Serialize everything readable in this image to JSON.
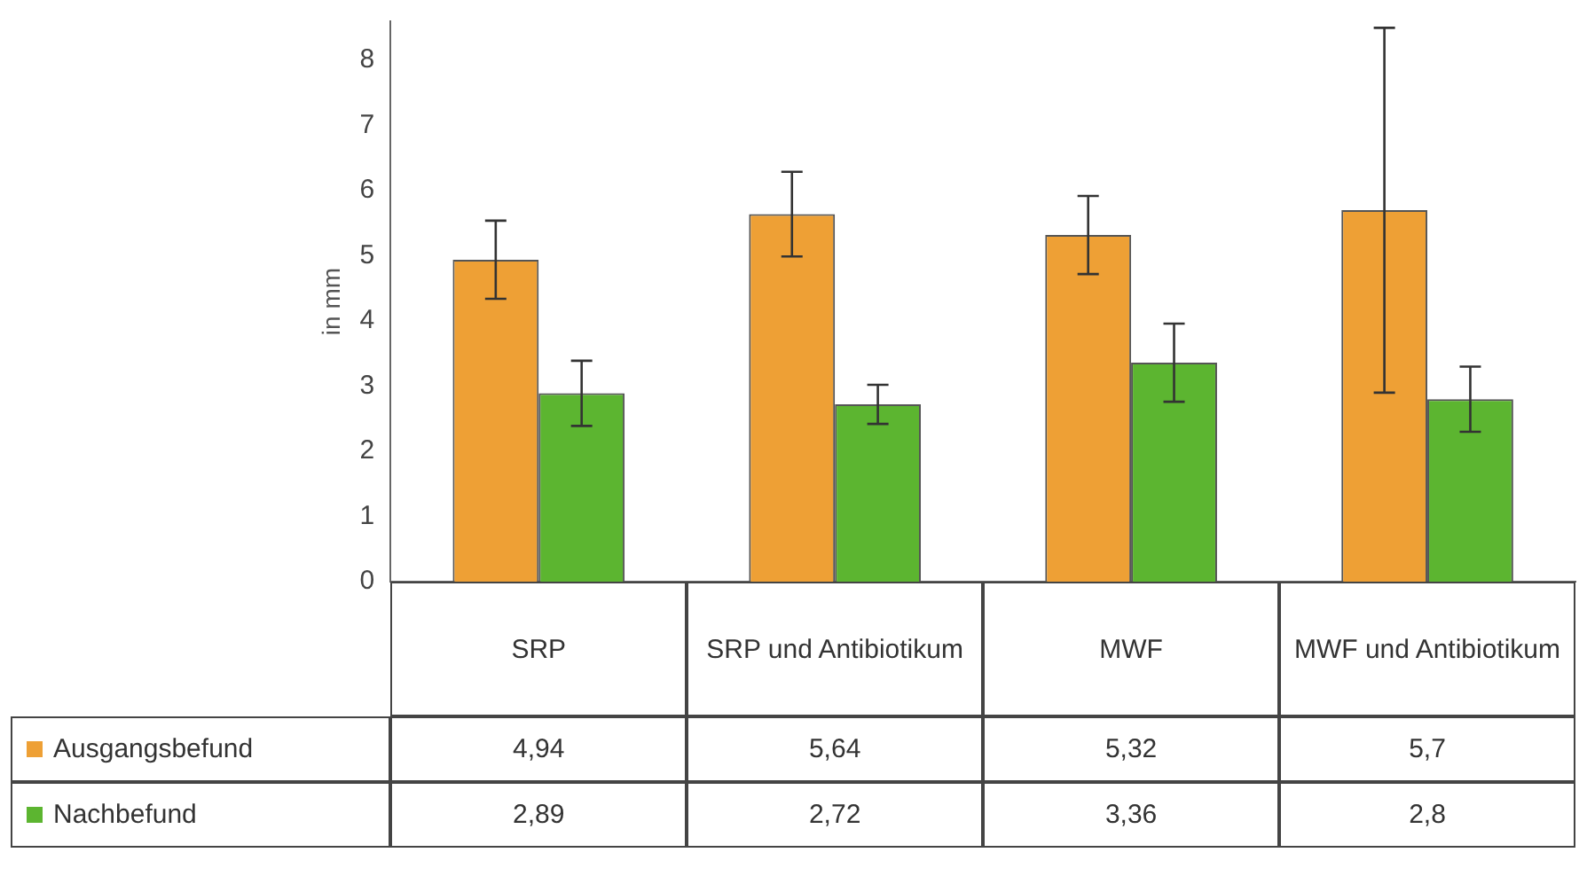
{
  "chart_data": {
    "type": "bar",
    "ylabel": "in mm",
    "categories": [
      "SRP",
      "SRP und Antibiotikum",
      "MWF",
      "MWF und Antibiotikum"
    ],
    "series": [
      {
        "name": "Ausgangsbefund",
        "color": "#eea035",
        "values": [
          4.94,
          5.64,
          5.32,
          5.7
        ],
        "errors": [
          0.6,
          0.65,
          0.6,
          2.8
        ],
        "value_labels": [
          "4,94",
          "5,64",
          "5,32",
          "5,7"
        ]
      },
      {
        "name": "Nachbefund",
        "color": "#5cb530",
        "values": [
          2.89,
          2.72,
          3.36,
          2.8
        ],
        "errors": [
          0.5,
          0.3,
          0.6,
          0.5
        ],
        "value_labels": [
          "2,89",
          "2,72",
          "3,36",
          "2,8"
        ]
      }
    ],
    "ylim": [
      0,
      8.6
    ],
    "yticks": [
      0,
      1,
      2,
      3,
      4,
      5,
      6,
      7,
      8
    ],
    "grid": false,
    "legend": "bottom"
  }
}
